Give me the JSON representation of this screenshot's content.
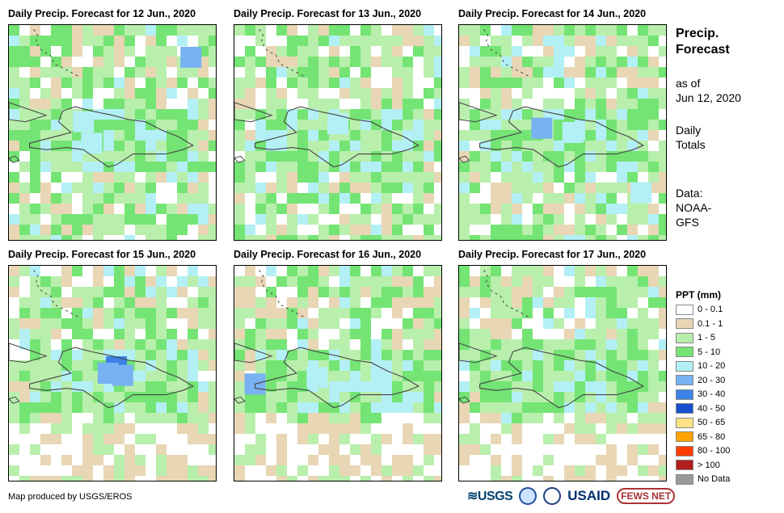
{
  "panels": [
    {
      "title": "Daily Precip. Forecast for 12 Jun., 2020",
      "seed": 12,
      "hot": [
        [
          0.88,
          0.15,
          "c20"
        ],
        [
          0.36,
          0.45,
          "c10"
        ],
        [
          0.4,
          0.55,
          "c10"
        ]
      ]
    },
    {
      "title": "Daily Precip. Forecast for 13 Jun., 2020",
      "seed": 13,
      "hot": [
        [
          0.5,
          0.46,
          "c10"
        ]
      ]
    },
    {
      "title": "Daily Precip. Forecast for 14 Jun., 2020",
      "seed": 14,
      "hot": [
        [
          0.4,
          0.48,
          "c20"
        ],
        [
          0.55,
          0.5,
          "c10"
        ],
        [
          0.88,
          0.78,
          "c10"
        ]
      ]
    },
    {
      "title": "Daily Precip. Forecast for 15 Jun., 2020",
      "seed": 15,
      "hot": [
        [
          0.52,
          0.47,
          "c30"
        ],
        [
          0.48,
          0.5,
          "c20"
        ],
        [
          0.55,
          0.51,
          "c20"
        ]
      ]
    },
    {
      "title": "Daily Precip. Forecast for 16 Jun., 2020",
      "seed": 16,
      "hot": [
        [
          0.1,
          0.55,
          "c20"
        ],
        [
          0.4,
          0.52,
          "c10"
        ]
      ]
    },
    {
      "title": "Daily Precip. Forecast for 17 Jun., 2020",
      "seed": 17,
      "hot": []
    }
  ],
  "side": {
    "title_line1": "Precip.",
    "title_line2": "Forecast",
    "asof_line1": "as of",
    "asof_line2": "Jun 12, 2020",
    "totals_line1": "Daily",
    "totals_line2": "Totals",
    "data_line1": "Data:",
    "data_line2": "NOAA-",
    "data_line3": "GFS"
  },
  "legend": {
    "title": "PPT (mm)",
    "items": [
      {
        "label": "0 - 0.1",
        "color": "#ffffff"
      },
      {
        "label": "0.1 - 1",
        "color": "#e8d6b4"
      },
      {
        "label": "1 - 5",
        "color": "#b8efac"
      },
      {
        "label": "5 - 10",
        "color": "#74e474"
      },
      {
        "label": "10 - 20",
        "color": "#b3f0f5"
      },
      {
        "label": "20 - 30",
        "color": "#78b2f2"
      },
      {
        "label": "30 - 40",
        "color": "#3c82e8"
      },
      {
        "label": "40 - 50",
        "color": "#1750cf"
      },
      {
        "label": "50 - 65",
        "color": "#ffe187"
      },
      {
        "label": "65 - 80",
        "color": "#ffa200"
      },
      {
        "label": "80 - 100",
        "color": "#ff3c00"
      },
      {
        "label": "> 100",
        "color": "#b01e1e"
      },
      {
        "label": "No Data",
        "color": "#999999"
      }
    ]
  },
  "footer": {
    "credit": "Map produced by USGS/EROS",
    "logo_usgs": "≋USGS",
    "logo_usaid": "USAID",
    "logo_fews": "FEWS NET"
  }
}
